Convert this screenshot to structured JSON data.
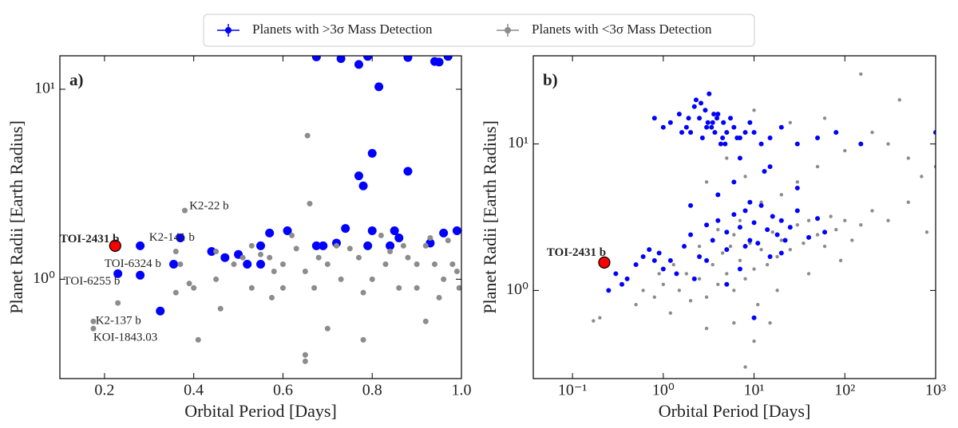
{
  "legend": [
    "Planets with >3σ Mass Detection",
    "Planets with <3σ Mass Detection"
  ],
  "chart_data": [
    {
      "type": "scatter",
      "panel_label": "a)",
      "x_label": "Orbital Period [Days]",
      "y_label": "Planet Radii [Earth Radius]",
      "xscale": "linear",
      "yscale": "log",
      "xlim": [
        0.1,
        1.0
      ],
      "ylim": [
        0.3,
        15
      ],
      "xticks": [
        0.2,
        0.4,
        0.6,
        0.8,
        {
          "value": 1.0,
          "label": "1.0"
        }
      ],
      "yticks": [
        {
          "value": 1,
          "label": "10⁰"
        },
        {
          "value": 10,
          "label": "10¹"
        }
      ],
      "series": [
        {
          "name": "Planets with >3σ Mass Detection",
          "color": "#0000ff",
          "size": 5.5,
          "x": [
            0.23,
            0.28,
            0.28,
            0.325,
            0.355,
            0.37,
            0.44,
            0.47,
            0.5,
            0.52,
            0.55,
            0.57,
            0.55,
            0.61,
            0.675,
            0.69,
            0.72,
            0.74,
            0.77,
            0.78,
            0.79,
            0.8,
            0.8,
            0.77,
            0.815,
            0.84,
            0.85,
            0.86,
            0.88,
            0.93,
            0.96,
            0.99,
            0.675,
            0.73,
            0.79,
            0.88,
            0.94,
            0.95,
            0.97
          ],
          "y": [
            1.07,
            1.5,
            1.05,
            0.68,
            1.2,
            1.65,
            1.4,
            1.3,
            1.35,
            1.2,
            1.5,
            1.75,
            1.2,
            1.8,
            1.5,
            1.5,
            1.55,
            1.85,
            3.5,
            3.1,
            1.5,
            1.8,
            4.6,
            13.5,
            10.3,
            1.5,
            1.8,
            1.65,
            3.7,
            1.55,
            1.75,
            1.8,
            14.8,
            14.5,
            14.9,
            14.7,
            14,
            13.9,
            14.9
          ]
        },
        {
          "name": "Planets with <3σ Mass Detection",
          "color": "#8c8c8c",
          "size": 3.5,
          "x": [
            0.175,
            0.175,
            0.23,
            0.38,
            0.36,
            0.37,
            0.39,
            0.36,
            0.4,
            0.41,
            0.45,
            0.45,
            0.46,
            0.49,
            0.51,
            0.53,
            0.53,
            0.55,
            0.57,
            0.575,
            0.58,
            0.6,
            0.6,
            0.62,
            0.63,
            0.65,
            0.655,
            0.66,
            0.65,
            0.65,
            0.67,
            0.68,
            0.7,
            0.7,
            0.72,
            0.73,
            0.75,
            0.77,
            0.78,
            0.78,
            0.8,
            0.82,
            0.83,
            0.84,
            0.86,
            0.87,
            0.88,
            0.9,
            0.9,
            0.92,
            0.92,
            0.93,
            0.94,
            0.95,
            0.96,
            0.97,
            0.98,
            0.99,
            0.995
          ],
          "y": [
            0.6,
            0.55,
            0.75,
            2.3,
            1.4,
            1.2,
            0.95,
            0.85,
            0.9,
            0.48,
            1.4,
            1.0,
            0.7,
            1.2,
            1.3,
            1.5,
            0.9,
            1.35,
            1.3,
            0.8,
            1.1,
            1.2,
            0.9,
            1.7,
            1.45,
            1.1,
            5.7,
            2.5,
            0.4,
            0.37,
            0.9,
            1.3,
            1.2,
            0.55,
            1.5,
            1.0,
            1.45,
            1.3,
            0.85,
            0.48,
            1.0,
            1.7,
            1.2,
            1.4,
            0.9,
            1.5,
            1.3,
            1.2,
            0.9,
            1.5,
            0.6,
            1.65,
            1.2,
            0.8,
            1.0,
            1.6,
            1.2,
            1.1,
            0.9
          ]
        }
      ],
      "highlight": {
        "x": 0.224,
        "y": 1.5,
        "color": "#ff0000"
      },
      "annotations": [
        {
          "text": "TOI-2431 b",
          "x": 0.1,
          "y": 1.62,
          "color": "#ff0000",
          "bold": true
        },
        {
          "text": "K2-141 b",
          "x": 0.3,
          "y": 1.65,
          "color": "#1f5fa8"
        },
        {
          "text": "TOI-6324 b",
          "x": 0.2,
          "y": 1.2,
          "color": "#1f5fa8"
        },
        {
          "text": "TOI-6255  b",
          "x": 0.108,
          "y": 0.97,
          "color": "#1f5fa8"
        },
        {
          "text": "K2-22 b",
          "x": 0.39,
          "y": 2.42,
          "color": "#999999"
        },
        {
          "text": "K2-137 b",
          "x": 0.18,
          "y": 0.6,
          "color": "#999999"
        },
        {
          "text": "KOI-1843.03",
          "x": 0.175,
          "y": 0.49,
          "color": "#999999"
        }
      ]
    },
    {
      "type": "scatter",
      "panel_label": "b)",
      "x_label": "Orbital Period [Days]",
      "y_label": "Planet Radii [Earth Radius]",
      "xscale": "log",
      "yscale": "log",
      "xlim": [
        0.037,
        1000
      ],
      "ylim": [
        0.25,
        40
      ],
      "xticks": [
        {
          "value": 0.1,
          "label": "10⁻¹"
        },
        {
          "value": 1,
          "label": "10⁰"
        },
        {
          "value": 10,
          "label": "10¹"
        },
        {
          "value": 100,
          "label": "10²"
        },
        {
          "value": 1000,
          "label": "10³"
        }
      ],
      "yticks": [
        {
          "value": 1,
          "label": "10⁰"
        },
        {
          "value": 10,
          "label": "10¹"
        }
      ],
      "series": [
        {
          "color": "#8c8c8c",
          "size": 2.2,
          "x": [
            0.17,
            0.2,
            0.5,
            0.6,
            0.8,
            1,
            1.2,
            1.5,
            1.8,
            2,
            2.5,
            3,
            3.5,
            4,
            4.5,
            5,
            5.5,
            6,
            7,
            8,
            9,
            10,
            11,
            12,
            14,
            16,
            18,
            20,
            25,
            30,
            35,
            40,
            50,
            60,
            70,
            80,
            100,
            120,
            150,
            200,
            300,
            500,
            800,
            3,
            6,
            10,
            8,
            15,
            4,
            7,
            12,
            20,
            30,
            50,
            100,
            200,
            400,
            700,
            150,
            60,
            25,
            10,
            5,
            90,
            40,
            2.5,
            1.3,
            0.9,
            18,
            6,
            300,
            500,
            1000,
            8,
            3
          ],
          "y": [
            0.62,
            0.65,
            0.8,
            1.0,
            0.9,
            1.1,
            0.7,
            1.0,
            1.3,
            0.85,
            1.2,
            0.9,
            1.5,
            1.1,
            1.8,
            1.3,
            2.0,
            1.0,
            1.6,
            1.2,
            2.1,
            1.4,
            0.8,
            1.9,
            1.5,
            2.5,
            1.7,
            2.2,
            1.9,
            2.8,
            2.1,
            3.0,
            2.4,
            2.0,
            3.2,
            2.6,
            3.0,
            2.2,
            2.8,
            3.5,
            3.0,
            4.0,
            2.5,
            0.55,
            0.6,
            0.45,
            0.3,
            0.6,
            2.6,
            3.0,
            4.0,
            4.5,
            5.5,
            7,
            9,
            12,
            20,
            6,
            30,
            15,
            14,
            17,
            8,
            1.6,
            1.3,
            2.0,
            1.5,
            1.3,
            1.0,
            2.4,
            10,
            8,
            7,
            6,
            5.5
          ]
        },
        {
          "color": "#0000ff",
          "size": 3,
          "x": [
            1.2,
            1.5,
            1.8,
            2.0,
            2.2,
            2.5,
            2.7,
            3.0,
            3.2,
            3.5,
            3.7,
            4.0,
            4.3,
            4.6,
            5.0,
            5.5,
            6.0,
            7.0,
            8.0,
            2.3,
            2.9,
            3.4,
            3.9,
            4.5,
            1.6,
            2.6,
            3.1,
            3.6,
            4.8,
            1.9,
            0.8,
            1.0,
            10,
            12,
            15,
            20,
            30,
            50,
            80,
            150,
            1000,
            9,
            6.5,
            0.3,
            0.4,
            0.5,
            0.6,
            0.7,
            0.8,
            0.9,
            1.0,
            1.2,
            1.4,
            1.7,
            2,
            2.5,
            3,
            3.5,
            4,
            5,
            6,
            7,
            8,
            9,
            10,
            12,
            14,
            16,
            18,
            20,
            25,
            30,
            40,
            50,
            60,
            3,
            5,
            8,
            11,
            15,
            22,
            4,
            6,
            9,
            13,
            2.2,
            0.35,
            0.25,
            20,
            7,
            10,
            5,
            2,
            7,
            15,
            30
          ],
          "y": [
            14,
            16,
            13,
            12,
            18,
            15,
            11,
            13,
            22,
            14,
            12,
            16,
            10,
            14,
            12,
            15,
            13,
            11,
            12,
            20,
            17,
            13,
            15,
            11,
            12,
            19,
            14,
            16,
            10,
            15,
            15,
            13,
            12,
            10,
            11,
            13,
            10,
            11,
            12,
            10,
            12,
            14,
            11,
            1.3,
            1.2,
            1.5,
            1.7,
            1.9,
            1.6,
            1.8,
            1.4,
            1.6,
            1.3,
            2.0,
            2.4,
            1.7,
            2.8,
            2.2,
            3.0,
            2.5,
            3.3,
            2.7,
            3.5,
            2.2,
            2.9,
            3.8,
            2.6,
            3.2,
            2.4,
            3.0,
            2.7,
            3.5,
            2.3,
            3.1,
            2.5,
            1.6,
            1.9,
            2.0,
            2.1,
            1.7,
            2.2,
            4.5,
            5.5,
            4.0,
            6.5,
            1.2,
            1.1,
            1.0,
            1.8,
            1.4,
            0.65,
            1.1,
            3.8,
            8,
            7,
            5
          ]
        }
      ],
      "highlight": {
        "x": 0.224,
        "y": 1.55,
        "color": "#ff0000"
      },
      "annotations": [
        {
          "text": "TOI-2431 b",
          "x": 0.052,
          "y": 1.8,
          "color": "#ff0000",
          "bold": true
        }
      ]
    }
  ]
}
